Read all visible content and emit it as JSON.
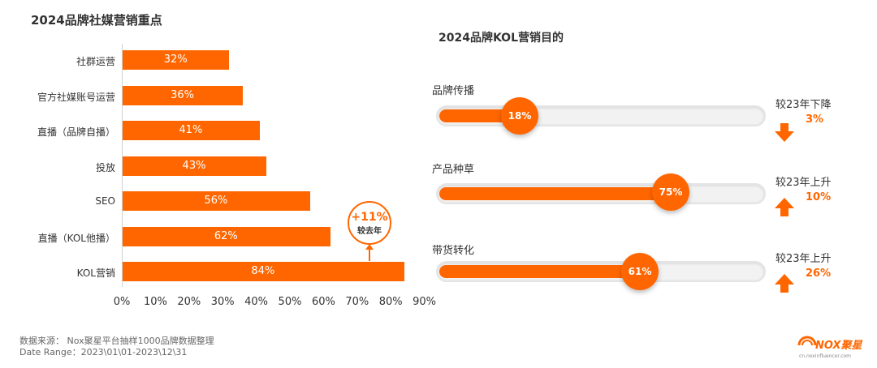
{
  "left_title": "2024品牌社媒营销重点",
  "right_title": "2024品牌KOL营销目的",
  "chart_data": [
    {
      "type": "bar",
      "orientation": "horizontal",
      "title": "2024品牌社媒营销重点",
      "categories": [
        "社群运营",
        "官方社媒账号运营",
        "直播（品牌自播）",
        "投放",
        "SEO",
        "直播（KOL他播）",
        "KOL营销"
      ],
      "values": [
        32,
        36,
        41,
        43,
        56,
        62,
        84
      ],
      "value_labels": [
        "32%",
        "36%",
        "41%",
        "43%",
        "56%",
        "62%",
        "84%"
      ],
      "xlim": [
        0,
        90
      ],
      "x_ticks": [
        "0%",
        "10%",
        "20%",
        "30%",
        "40%",
        "50%",
        "60%",
        "70%",
        "80%",
        "90%"
      ],
      "annotation": {
        "category": "KOL营销",
        "text": "+11%",
        "sub": "较去年"
      },
      "color": "#FF6600"
    },
    {
      "type": "bar",
      "title": "2024品牌KOL营销目的",
      "categories": [
        "品牌传播",
        "产品种草",
        "带货转化"
      ],
      "values": [
        18,
        75,
        61
      ],
      "value_labels": [
        "18%",
        "75%",
        "61%"
      ],
      "comparison": [
        {
          "label": "较23年下降",
          "value": "3%",
          "direction": "down"
        },
        {
          "label": "较23年上升",
          "value": "10%",
          "direction": "up"
        },
        {
          "label": "较23年上升",
          "value": "26%",
          "direction": "up"
        }
      ],
      "color": "#FF6600"
    }
  ],
  "source": {
    "line1": "数据来源： Nox聚星平台抽样1000品牌数据整理",
    "line2": "Date Range：2023\\01\\01-2023\\12\\31"
  },
  "logo": {
    "text": "NOX聚星",
    "url": "cn.noxinfluencer.com"
  }
}
